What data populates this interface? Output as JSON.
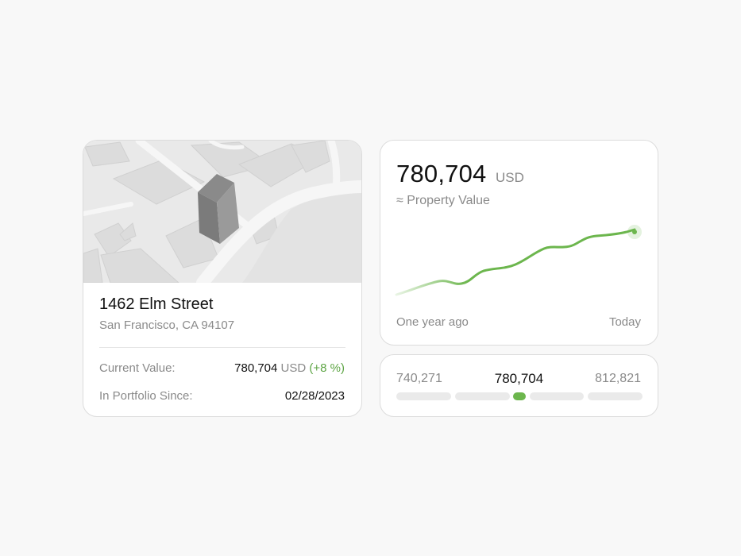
{
  "property": {
    "address": "1462 Elm Street",
    "city": "San Francisco, CA 94107",
    "current_value_label": "Current Value:",
    "current_value_amount": "780,704",
    "current_value_currency": "USD",
    "current_value_change": "(+8 %)",
    "since_label": "In Portfolio Since:",
    "since_date": "02/28/2023"
  },
  "value_card": {
    "amount": "780,704",
    "currency": "USD",
    "label": "≈ Property Value",
    "axis_start": "One year ago",
    "axis_end": "Today"
  },
  "range": {
    "low": "740,271",
    "estimate": "780,704",
    "high": "812,821",
    "estimate_position": 0.5
  },
  "colors": {
    "accent": "#6cb64d",
    "muted_text": "#8a8a8a",
    "positive": "#5ea545"
  }
}
